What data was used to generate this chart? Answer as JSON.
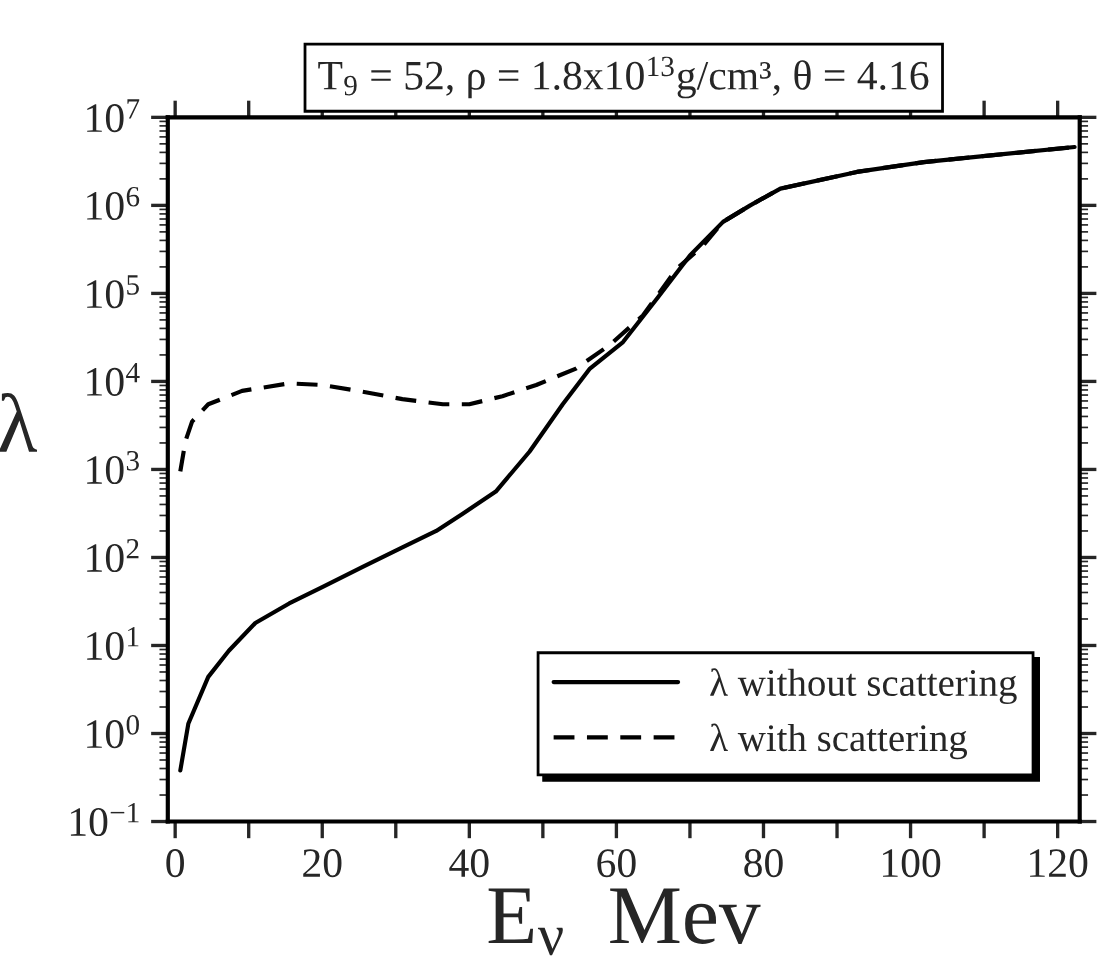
{
  "chart_data": {
    "type": "line",
    "title": "T$_{9}$ = 52, ρ = 1.8x10$^{13}$g/cm³, θ = 4.16",
    "xlabel": "E$_{ν}$  Mev",
    "ylabel": "λ",
    "log": "y",
    "legend": "bottom right",
    "grid": false,
    "xlim": [
      -1,
      123
    ],
    "xticks": [
      0,
      {
        "value": 10,
        "label": null
      },
      20,
      {
        "value": 30,
        "label": null
      },
      40,
      {
        "value": 50,
        "label": null
      },
      60,
      {
        "value": 70,
        "label": null
      },
      80,
      {
        "value": 90,
        "label": null
      },
      100,
      {
        "value": 110,
        "label": null
      },
      120
    ],
    "ylim": [
      0.1,
      10000000
    ],
    "yticks": [
      {
        "value": 0.1,
        "label": "10$^{−1}$"
      },
      {
        "value": 1,
        "label": "10$^{0}$"
      },
      {
        "value": 10,
        "label": "10$^{1}$"
      },
      {
        "value": 100,
        "label": "10$^{2}$"
      },
      {
        "value": 1000,
        "label": "10$^{3}$"
      },
      {
        "value": 10000,
        "label": "10$^{4}$"
      },
      {
        "value": 100000,
        "label": "10$^{5}$"
      },
      {
        "value": 1000000,
        "label": "10$^{6}$"
      },
      {
        "value": 10000000,
        "label": "10$^{7}$"
      }
    ],
    "series": [
      {
        "name": "λ without scattering",
        "color": "#000000",
        "line_style": "solid",
        "x": [
          0.7,
          1.8,
          4.5,
          7.3,
          10.9,
          15.5,
          20,
          25.5,
          30.9,
          35.5,
          39,
          43.6,
          48.2,
          52.7,
          56.4,
          60.9,
          65.5,
          70,
          74.5,
          78.2,
          82.3,
          92.7,
          101.8,
          110.9,
          122.3
        ],
        "values": [
          0.38,
          1.3,
          4.4,
          8.7,
          18,
          30,
          46,
          78,
          130,
          200,
          310,
          560,
          1600,
          5500,
          14000,
          28000,
          87000,
          270000,
          650000,
          1000000,
          1550000,
          2400000,
          3100000,
          3700000,
          4600000
        ]
      },
      {
        "name": "λ with scattering",
        "color": "#000000",
        "line_style": "dashed",
        "x": [
          0.7,
          1.4,
          2.3,
          4.5,
          9.1,
          15.5,
          20,
          24.5,
          30.9,
          36.4,
          40,
          44.5,
          49.1,
          54.5,
          59.1,
          63.6,
          68.2,
          71.8,
          74.5,
          78.2,
          82.3,
          92.7,
          101.8,
          110.9,
          122.3
        ],
        "values": [
          950,
          2100,
          3500,
          5500,
          7800,
          9500,
          9100,
          7900,
          6300,
          5500,
          5500,
          6800,
          9100,
          14000,
          26000,
          56000,
          190000,
          350000,
          650000,
          1000000,
          1550000,
          2400000,
          3100000,
          3700000,
          4600000
        ]
      }
    ]
  }
}
